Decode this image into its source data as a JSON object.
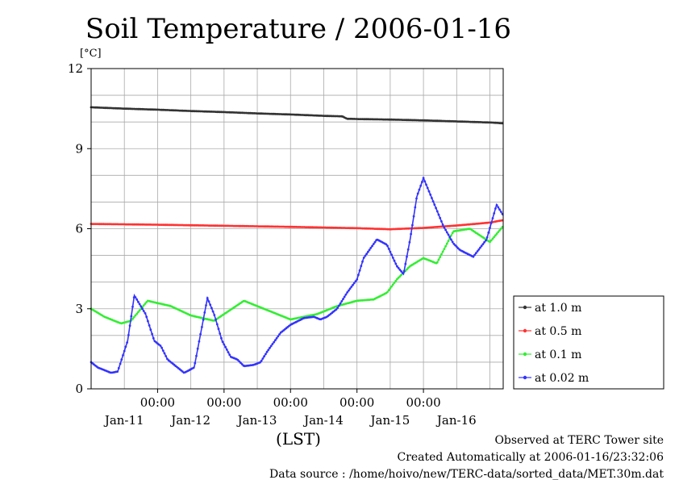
{
  "chart_data": {
    "type": "line",
    "title": "Soil Temperature / 2006-01-16",
    "y_unit": "[°C]",
    "xlabel": "(LST)",
    "ylim": [
      0,
      12
    ],
    "y_ticks": [
      "0",
      "3",
      "6",
      "9",
      "12"
    ],
    "x_time_ticks": [
      "00:00",
      "00:00",
      "00:00",
      "00:00",
      "00:00"
    ],
    "x_date_labels": [
      "Jan-11",
      "Jan-12",
      "Jan-13",
      "Jan-14",
      "Jan-15",
      "Jan-16"
    ],
    "legend_position": "right",
    "series": [
      {
        "name": "at 1.0 m",
        "color": "#333333",
        "x_day": [
          0.0,
          0.5,
          1.0,
          1.5,
          2.0,
          2.5,
          3.0,
          3.5,
          3.78,
          3.85,
          4.0,
          4.5,
          5.0,
          5.5,
          6.0,
          6.2
        ],
        "values": [
          10.55,
          10.5,
          10.46,
          10.41,
          10.37,
          10.32,
          10.28,
          10.23,
          10.21,
          10.12,
          10.11,
          10.09,
          10.06,
          10.02,
          9.98,
          9.95
        ]
      },
      {
        "name": "at 0.5 m",
        "color": "#ff3333",
        "x_day": [
          0.0,
          1.0,
          2.0,
          3.0,
          4.0,
          4.5,
          5.0,
          5.5,
          6.0,
          6.2
        ],
        "values": [
          6.18,
          6.15,
          6.11,
          6.07,
          6.02,
          5.98,
          6.03,
          6.12,
          6.23,
          6.32
        ]
      },
      {
        "name": "at 0.1 m",
        "color": "#33ee33",
        "x_day": [
          0.0,
          0.2,
          0.45,
          0.6,
          0.85,
          1.2,
          1.5,
          1.85,
          2.3,
          2.6,
          3.0,
          3.4,
          3.7,
          4.0,
          4.25,
          4.45,
          4.6,
          4.8,
          5.0,
          5.2,
          5.45,
          5.7,
          6.0,
          6.2
        ],
        "values": [
          3.0,
          2.7,
          2.45,
          2.55,
          3.3,
          3.1,
          2.75,
          2.55,
          3.3,
          3.0,
          2.6,
          2.8,
          3.1,
          3.3,
          3.35,
          3.6,
          4.1,
          4.6,
          4.9,
          4.7,
          5.9,
          6.0,
          5.5,
          6.1
        ]
      },
      {
        "name": "at 0.02 m",
        "color": "#3333ff",
        "x_day": [
          0.0,
          0.1,
          0.3,
          0.4,
          0.55,
          0.65,
          0.82,
          0.95,
          1.05,
          1.15,
          1.3,
          1.4,
          1.55,
          1.75,
          1.85,
          1.97,
          2.1,
          2.2,
          2.3,
          2.45,
          2.55,
          2.65,
          2.85,
          3.0,
          3.2,
          3.35,
          3.45,
          3.55,
          3.7,
          3.85,
          4.0,
          4.1,
          4.3,
          4.45,
          4.6,
          4.7,
          4.8,
          4.9,
          5.0,
          5.15,
          5.3,
          5.45,
          5.55,
          5.75,
          5.95,
          6.1,
          6.2
        ],
        "values": [
          1.0,
          0.8,
          0.6,
          0.65,
          1.8,
          3.5,
          2.8,
          1.8,
          1.6,
          1.1,
          0.8,
          0.6,
          0.8,
          3.4,
          2.8,
          1.8,
          1.2,
          1.1,
          0.85,
          0.9,
          1.0,
          1.4,
          2.1,
          2.4,
          2.65,
          2.7,
          2.6,
          2.7,
          3.0,
          3.6,
          4.1,
          4.9,
          5.6,
          5.4,
          4.6,
          4.3,
          5.6,
          7.2,
          7.9,
          7.0,
          6.1,
          5.45,
          5.2,
          4.95,
          5.6,
          6.9,
          6.5
        ]
      }
    ]
  },
  "footer": {
    "line1": "Observed at TERC Tower site",
    "line2": "Created Automatically at 2006-01-16/23:32:06",
    "line3": "Data source : /home/hoivo/new/TERC-data/sorted_data/MET.30m.dat"
  }
}
